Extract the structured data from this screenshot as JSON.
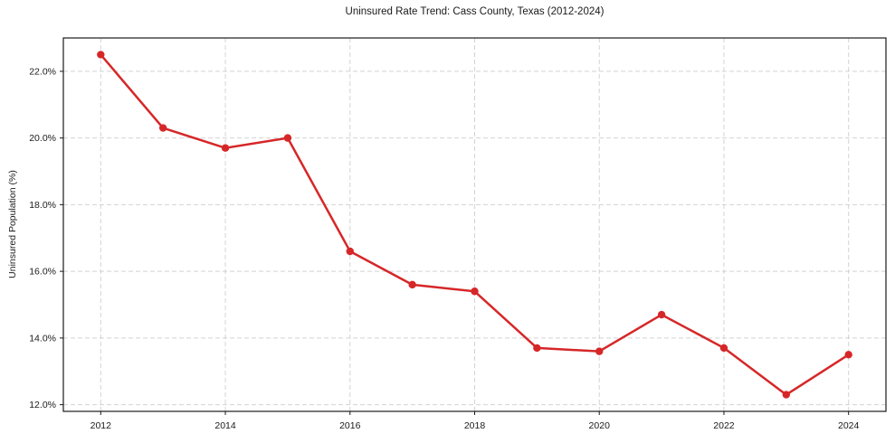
{
  "chart_data": {
    "type": "line",
    "title": "Uninsured Rate Trend: Cass County, Texas (2012-2024)",
    "xlabel": "",
    "ylabel": "Uninsured Population (%)",
    "x": [
      2012,
      2013,
      2014,
      2015,
      2016,
      2017,
      2018,
      2019,
      2020,
      2021,
      2022,
      2023,
      2024
    ],
    "values": [
      22.5,
      20.3,
      19.7,
      20.0,
      16.6,
      15.6,
      15.4,
      13.7,
      13.6,
      14.7,
      13.7,
      12.3,
      13.5
    ],
    "xlim": [
      2011.4,
      2024.6
    ],
    "ylim": [
      11.8,
      23.0
    ],
    "xticks": [
      2012,
      2014,
      2016,
      2018,
      2020,
      2022,
      2024
    ],
    "xtick_labels": [
      "2012",
      "2014",
      "2016",
      "2018",
      "2020",
      "2022",
      "2024"
    ],
    "yticks": [
      12,
      14,
      16,
      18,
      20,
      22
    ],
    "ytick_labels": [
      "12.0%",
      "14.0%",
      "16.0%",
      "18.0%",
      "20.0%",
      "22.0%"
    ],
    "grid": true,
    "grid_style": "dashed",
    "legend": "none",
    "marker": "circle",
    "colors": {
      "line": "#d62728",
      "marker": "#d62728",
      "grid": "#cccccc",
      "spine": "#1a1a1a",
      "text": "#1a1a1a",
      "background": "#ffffff"
    }
  }
}
